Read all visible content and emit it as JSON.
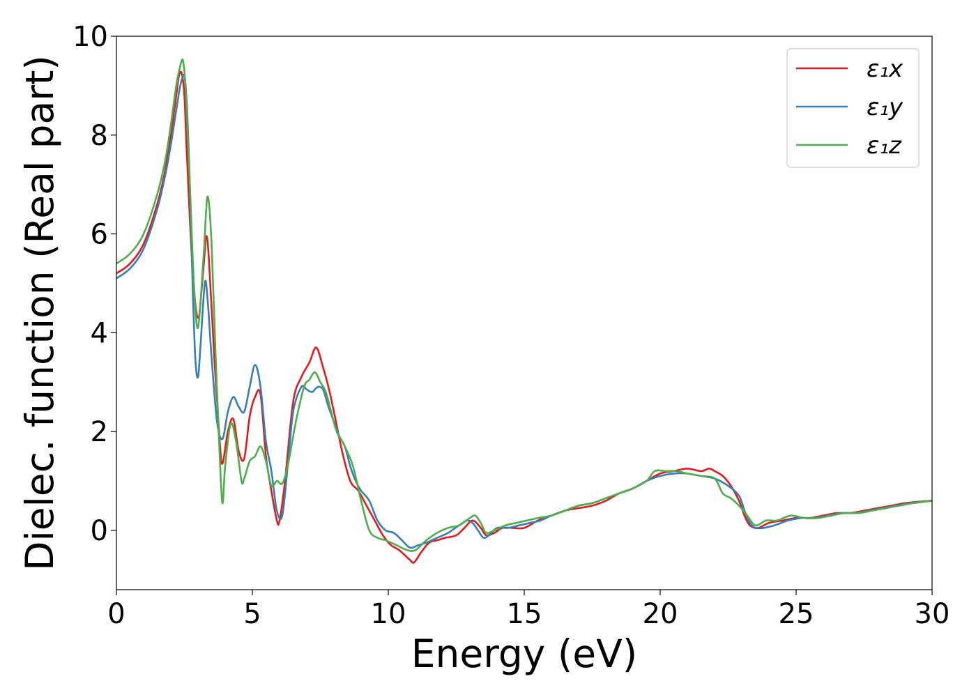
{
  "chart_data": {
    "type": "line",
    "title": "",
    "xlabel": "Energy (eV)",
    "ylabel": "Dielec. function (Real part)",
    "xlim": [
      0,
      30
    ],
    "ylim": [
      -1.2,
      10
    ],
    "xticks": [
      0,
      5,
      10,
      15,
      20,
      25,
      30
    ],
    "yticks": [
      0,
      2,
      4,
      6,
      8,
      10
    ],
    "grid": false,
    "legend_position": "top-right",
    "series": [
      {
        "name": "ε₁x",
        "color": "#e41a1c",
        "x": [
          0,
          0.5,
          1.0,
          1.5,
          1.8,
          2.0,
          2.2,
          2.3,
          2.4,
          2.5,
          2.6,
          2.8,
          3.0,
          3.2,
          3.3,
          3.4,
          3.6,
          3.8,
          3.9,
          4.1,
          4.3,
          4.5,
          4.7,
          4.9,
          5.1,
          5.3,
          5.5,
          5.7,
          5.9,
          6.0,
          6.2,
          6.5,
          6.8,
          7.1,
          7.35,
          7.6,
          7.8,
          8.0,
          8.3,
          8.6,
          8.9,
          9.2,
          9.5,
          9.8,
          10.1,
          10.4,
          10.8,
          10.95,
          11.2,
          11.5,
          11.8,
          12.1,
          12.5,
          12.8,
          13.1,
          13.4,
          13.6,
          13.9,
          14.2,
          14.6,
          15.0,
          15.5,
          16.0,
          16.5,
          17.0,
          17.5,
          18.0,
          18.5,
          19.0,
          19.5,
          20.0,
          20.5,
          21.0,
          21.5,
          21.8,
          22.0,
          22.3,
          22.6,
          22.9,
          23.1,
          23.3,
          23.6,
          24.0,
          24.5,
          25.0,
          25.5,
          26.0,
          26.5,
          27.0,
          27.5,
          28.0,
          28.5,
          29.0,
          29.5,
          30.0
        ],
        "y": [
          5.2,
          5.4,
          5.8,
          6.6,
          7.3,
          8.0,
          8.8,
          9.2,
          9.25,
          8.8,
          7.5,
          5.3,
          4.3,
          5.3,
          5.95,
          5.5,
          3.5,
          1.8,
          1.35,
          2.0,
          2.25,
          1.6,
          1.45,
          2.3,
          2.7,
          2.75,
          1.5,
          0.8,
          0.2,
          0.2,
          1.0,
          2.6,
          3.1,
          3.4,
          3.7,
          3.3,
          2.9,
          2.4,
          1.6,
          1.0,
          0.8,
          0.5,
          0.2,
          -0.1,
          -0.3,
          -0.4,
          -0.6,
          -0.65,
          -0.45,
          -0.25,
          -0.2,
          -0.15,
          -0.1,
          0.05,
          0.2,
          0.05,
          -0.1,
          -0.05,
          0.05,
          0.05,
          0.05,
          0.2,
          0.3,
          0.4,
          0.45,
          0.5,
          0.6,
          0.75,
          0.85,
          1.0,
          1.15,
          1.2,
          1.25,
          1.2,
          1.25,
          1.2,
          1.1,
          0.9,
          0.6,
          0.3,
          0.1,
          0.05,
          0.15,
          0.2,
          0.25,
          0.25,
          0.3,
          0.35,
          0.35,
          0.4,
          0.45,
          0.5,
          0.55,
          0.58,
          0.6
        ]
      },
      {
        "name": "ε₁y",
        "color": "#377eb8",
        "x": [
          0,
          0.5,
          1.0,
          1.5,
          1.8,
          2.0,
          2.2,
          2.35,
          2.5,
          2.6,
          2.7,
          2.8,
          2.9,
          3.0,
          3.1,
          3.25,
          3.35,
          3.5,
          3.7,
          3.9,
          4.1,
          4.3,
          4.5,
          4.7,
          4.9,
          5.1,
          5.3,
          5.5,
          5.7,
          5.9,
          6.1,
          6.3,
          6.5,
          6.8,
          7.0,
          7.2,
          7.4,
          7.6,
          7.8,
          8.0,
          8.2,
          8.4,
          8.6,
          8.8,
          9.0,
          9.3,
          9.6,
          9.9,
          10.2,
          10.5,
          10.8,
          11.1,
          11.4,
          11.8,
          12.2,
          12.6,
          12.9,
          13.1,
          13.3,
          13.5,
          13.7,
          14.0,
          14.4,
          14.8,
          15.2,
          15.6,
          16.0,
          16.5,
          17.0,
          17.5,
          18.0,
          18.5,
          19.0,
          19.5,
          20.0,
          20.5,
          21.0,
          21.5,
          22.0,
          22.5,
          22.9,
          23.1,
          23.3,
          23.5,
          23.8,
          24.2,
          24.7,
          25.2,
          25.7,
          26.2,
          26.7,
          27.2,
          27.7,
          28.2,
          28.7,
          29.2,
          30.0
        ],
        "y": [
          5.1,
          5.3,
          5.7,
          6.5,
          7.2,
          7.8,
          8.5,
          9.0,
          9.2,
          8.5,
          7.0,
          5.0,
          3.5,
          3.1,
          3.8,
          5.0,
          4.7,
          3.5,
          2.2,
          1.85,
          2.4,
          2.7,
          2.5,
          2.4,
          2.9,
          3.35,
          2.9,
          1.8,
          1.2,
          0.4,
          0.3,
          1.3,
          2.4,
          2.9,
          2.85,
          2.8,
          2.9,
          2.85,
          2.5,
          2.2,
          1.9,
          1.7,
          1.3,
          1.0,
          0.8,
          0.6,
          0.2,
          0.0,
          -0.05,
          -0.2,
          -0.35,
          -0.3,
          -0.25,
          -0.15,
          -0.05,
          0.1,
          0.2,
          0.15,
          0.0,
          -0.15,
          -0.1,
          0.05,
          0.05,
          0.1,
          0.15,
          0.2,
          0.3,
          0.4,
          0.5,
          0.55,
          0.65,
          0.75,
          0.85,
          1.0,
          1.1,
          1.15,
          1.15,
          1.1,
          1.05,
          0.9,
          0.7,
          0.4,
          0.15,
          0.05,
          0.05,
          0.1,
          0.2,
          0.25,
          0.25,
          0.3,
          0.35,
          0.35,
          0.4,
          0.45,
          0.5,
          0.55,
          0.6
        ]
      },
      {
        "name": "ε₁z",
        "color": "#4daf4a",
        "x": [
          0,
          0.5,
          1.0,
          1.5,
          1.8,
          2.0,
          2.2,
          2.35,
          2.45,
          2.55,
          2.7,
          2.85,
          3.0,
          3.2,
          3.35,
          3.5,
          3.65,
          3.8,
          3.9,
          4.0,
          4.2,
          4.4,
          4.6,
          4.7,
          4.9,
          5.1,
          5.3,
          5.5,
          5.7,
          5.9,
          6.1,
          6.3,
          6.6,
          6.9,
          7.1,
          7.3,
          7.5,
          7.7,
          7.9,
          8.1,
          8.4,
          8.7,
          9.0,
          9.3,
          9.6,
          9.9,
          10.3,
          10.7,
          11.0,
          11.4,
          11.8,
          12.2,
          12.6,
          13.0,
          13.2,
          13.4,
          13.6,
          13.9,
          14.3,
          14.7,
          15.1,
          15.5,
          16.0,
          16.5,
          17.0,
          17.5,
          18.0,
          18.5,
          19.0,
          19.5,
          19.8,
          20.2,
          20.6,
          21.0,
          21.5,
          22.0,
          22.3,
          22.6,
          22.9,
          23.2,
          23.5,
          23.9,
          24.3,
          24.8,
          25.3,
          25.8,
          26.3,
          26.8,
          27.3,
          27.8,
          28.3,
          28.8,
          29.3,
          30.0
        ],
        "y": [
          5.4,
          5.6,
          6.0,
          6.8,
          7.5,
          8.2,
          9.0,
          9.4,
          9.5,
          8.9,
          7.0,
          5.0,
          4.1,
          5.5,
          6.75,
          5.8,
          3.5,
          1.5,
          0.55,
          1.3,
          2.15,
          1.8,
          1.0,
          1.05,
          1.4,
          1.5,
          1.7,
          1.4,
          0.9,
          1.0,
          0.95,
          1.3,
          2.2,
          2.9,
          3.05,
          3.2,
          3.0,
          2.8,
          2.4,
          2.0,
          1.7,
          1.3,
          0.6,
          0.0,
          -0.15,
          -0.2,
          -0.3,
          -0.4,
          -0.4,
          -0.2,
          -0.05,
          0.05,
          0.1,
          0.25,
          0.3,
          0.15,
          -0.05,
          0.0,
          0.1,
          0.15,
          0.2,
          0.25,
          0.3,
          0.4,
          0.5,
          0.55,
          0.65,
          0.75,
          0.85,
          1.0,
          1.2,
          1.2,
          1.2,
          1.15,
          1.1,
          1.05,
          0.75,
          0.65,
          0.5,
          0.3,
          0.1,
          0.2,
          0.2,
          0.3,
          0.25,
          0.25,
          0.3,
          0.35,
          0.35,
          0.4,
          0.45,
          0.5,
          0.55,
          0.6
        ]
      }
    ]
  }
}
